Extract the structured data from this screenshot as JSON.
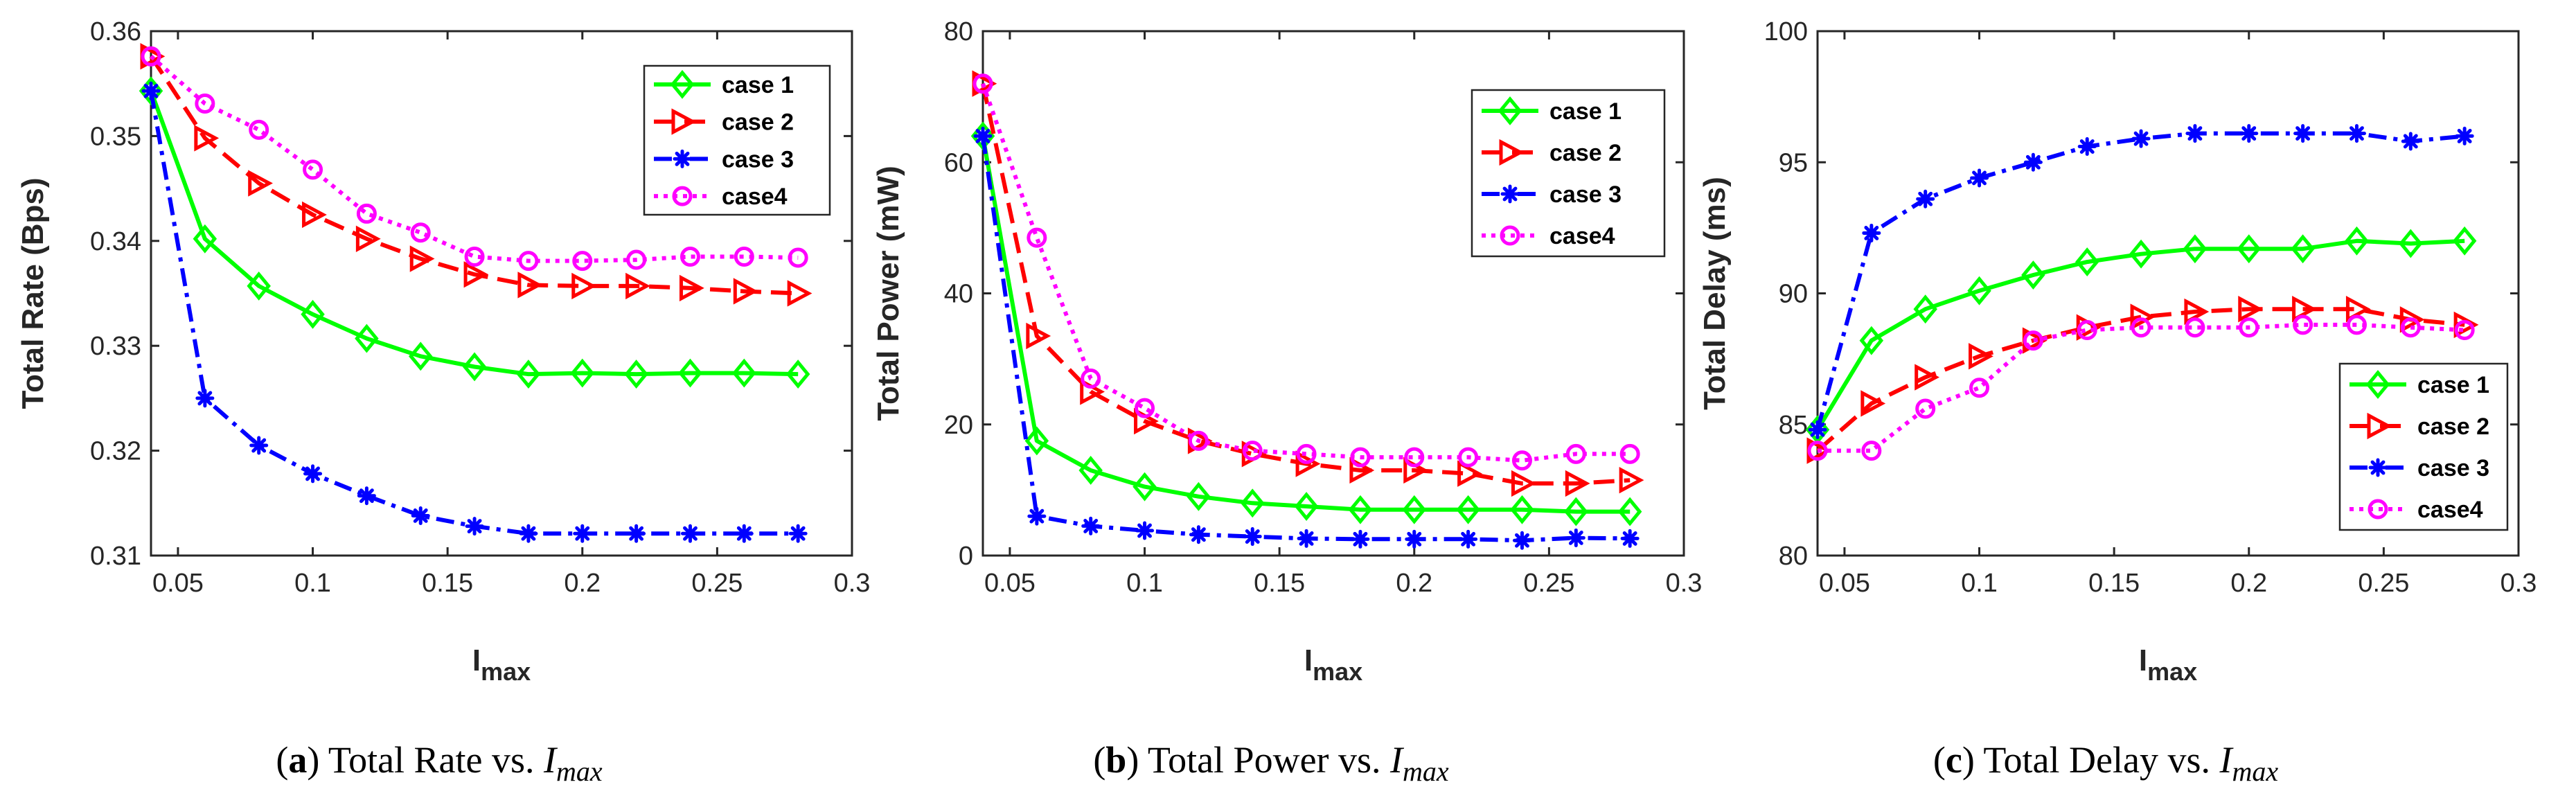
{
  "chart_data": [
    {
      "type": "line",
      "caption": {
        "letter": "a",
        "text": "Total Rate vs.",
        "var": "I",
        "sub": "max"
      },
      "ylabel": "Total Rate (Bps)",
      "xlabel": {
        "main": "I",
        "sub": "max"
      },
      "xlim": [
        0.04,
        0.3
      ],
      "ylim": [
        0.31,
        0.36
      ],
      "xticks": [
        0.05,
        0.1,
        0.15,
        0.2,
        0.25,
        0.3
      ],
      "xtick_labels": [
        "0.05",
        "0.1",
        "0.15",
        "0.2",
        "0.25",
        "0.3"
      ],
      "yticks": [
        0.31,
        0.32,
        0.33,
        0.34,
        0.35,
        0.36
      ],
      "ytick_labels": [
        "0.31",
        "0.32",
        "0.33",
        "0.34",
        "0.35",
        "0.36"
      ],
      "legend_position": "top-right",
      "grid": false,
      "x": [
        0.04,
        0.06,
        0.08,
        0.1,
        0.12,
        0.14,
        0.16,
        0.18,
        0.2,
        0.22,
        0.24,
        0.26,
        0.28
      ],
      "series": [
        {
          "name": "case 1",
          "values": [
            0.3543,
            0.3402,
            0.3357,
            0.333,
            0.3307,
            0.329,
            0.328,
            0.3273,
            0.3274,
            0.3273,
            0.3274,
            0.3274,
            0.3273
          ]
        },
        {
          "name": "case 2",
          "values": [
            0.3576,
            0.3498,
            0.3455,
            0.3425,
            0.3402,
            0.3383,
            0.3368,
            0.3358,
            0.3357,
            0.3357,
            0.3355,
            0.3352,
            0.335
          ]
        },
        {
          "name": "case 3",
          "values": [
            0.3543,
            0.325,
            0.3205,
            0.3178,
            0.3157,
            0.3138,
            0.3128,
            0.3121,
            0.3121,
            0.3121,
            0.3121,
            0.3121,
            0.3121
          ]
        },
        {
          "name": "case4",
          "values": [
            0.3576,
            0.3531,
            0.3506,
            0.3468,
            0.3426,
            0.3408,
            0.3385,
            0.3381,
            0.3381,
            0.3382,
            0.3385,
            0.3385,
            0.3384
          ]
        }
      ]
    },
    {
      "type": "line",
      "caption": {
        "letter": "b",
        "text": "Total Power vs.",
        "var": "I",
        "sub": "max"
      },
      "ylabel": "Total Power (mW)",
      "xlabel": {
        "main": "I",
        "sub": "max"
      },
      "xlim": [
        0.04,
        0.3
      ],
      "ylim": [
        0,
        80
      ],
      "xticks": [
        0.05,
        0.1,
        0.15,
        0.2,
        0.25,
        0.3
      ],
      "xtick_labels": [
        "0.05",
        "0.1",
        "0.15",
        "0.2",
        "0.25",
        "0.3"
      ],
      "yticks": [
        0,
        20,
        40,
        60,
        80
      ],
      "ytick_labels": [
        "0",
        "20",
        "40",
        "60",
        "80"
      ],
      "legend_position": "top-right",
      "grid": false,
      "x": [
        0.04,
        0.06,
        0.08,
        0.1,
        0.12,
        0.14,
        0.16,
        0.18,
        0.2,
        0.22,
        0.24,
        0.26,
        0.28
      ],
      "series": [
        {
          "name": "case 1",
          "values": [
            64,
            17.5,
            13,
            10.5,
            9,
            8,
            7.5,
            7,
            7,
            7,
            7,
            6.7,
            6.7
          ]
        },
        {
          "name": "case 2",
          "values": [
            72,
            33.5,
            25,
            20.5,
            17.5,
            15.5,
            14,
            13,
            13,
            12.5,
            11,
            11,
            11.5
          ]
        },
        {
          "name": "case 3",
          "values": [
            64,
            6,
            4.5,
            3.8,
            3.2,
            2.9,
            2.6,
            2.5,
            2.5,
            2.5,
            2.3,
            2.7,
            2.6
          ]
        },
        {
          "name": "case4",
          "values": [
            72,
            48.5,
            27,
            22.5,
            17.5,
            16,
            15.5,
            15,
            15,
            15,
            14.5,
            15.5,
            15.5
          ]
        }
      ]
    },
    {
      "type": "line",
      "caption": {
        "letter": "c",
        "text": "Total Delay vs.",
        "var": "I",
        "sub": "max"
      },
      "ylabel": "Total Delay (ms)",
      "xlabel": {
        "main": "I",
        "sub": "max"
      },
      "xlim": [
        0.04,
        0.3
      ],
      "ylim": [
        80,
        100
      ],
      "xticks": [
        0.05,
        0.1,
        0.15,
        0.2,
        0.25,
        0.3
      ],
      "xtick_labels": [
        "0.05",
        "0.1",
        "0.15",
        "0.2",
        "0.25",
        "0.3"
      ],
      "yticks": [
        80,
        85,
        90,
        95,
        100
      ],
      "ytick_labels": [
        "80",
        "85",
        "90",
        "95",
        "100"
      ],
      "legend_position": "bottom-right",
      "grid": false,
      "x": [
        0.04,
        0.06,
        0.08,
        0.1,
        0.12,
        0.14,
        0.16,
        0.18,
        0.2,
        0.22,
        0.24,
        0.26,
        0.28
      ],
      "series": [
        {
          "name": "case 1",
          "values": [
            84.8,
            88.2,
            89.4,
            90.1,
            90.7,
            91.2,
            91.5,
            91.7,
            91.7,
            91.7,
            92.0,
            91.9,
            92.0
          ]
        },
        {
          "name": "case 2",
          "values": [
            84.0,
            85.8,
            86.8,
            87.6,
            88.2,
            88.7,
            89.1,
            89.3,
            89.4,
            89.4,
            89.4,
            89.0,
            88.8
          ]
        },
        {
          "name": "case 3",
          "values": [
            84.8,
            92.3,
            93.6,
            94.4,
            95.0,
            95.6,
            95.9,
            96.1,
            96.1,
            96.1,
            96.1,
            95.8,
            96.0
          ]
        },
        {
          "name": "case4",
          "values": [
            84.0,
            84.0,
            85.6,
            86.4,
            88.2,
            88.6,
            88.7,
            88.7,
            88.7,
            88.8,
            88.8,
            88.7,
            88.6
          ]
        }
      ]
    }
  ],
  "styles": [
    {
      "color": "#00ff00",
      "dash": "",
      "marker": "diamond"
    },
    {
      "color": "#ff0000",
      "dash": "30 14",
      "marker": "triangle-right"
    },
    {
      "color": "#0000ff",
      "dash": "26 10 6 10",
      "marker": "asterisk"
    },
    {
      "color": "#ff00ff",
      "dash": "6 8",
      "marker": "circle"
    }
  ]
}
